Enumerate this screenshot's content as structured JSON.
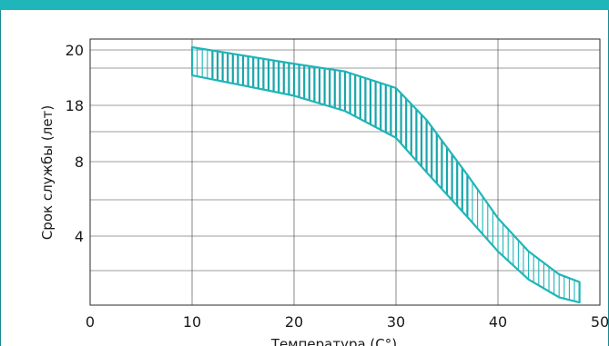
{
  "colors": {
    "accent": "#1fb5b9",
    "band_line": "#1fb5b9",
    "band_fill": "#1aa6ab",
    "grid": "#3a3a3a",
    "frame": "#1a8a93"
  },
  "chart_data": {
    "type": "area",
    "xlabel": "Температура (C°)",
    "ylabel": "Срок службы (лет)",
    "x_ticks": [
      "0",
      "10",
      "20",
      "30",
      "40",
      "50"
    ],
    "x_tick_values": [
      0,
      10,
      20,
      30,
      40,
      50
    ],
    "y_ticks": [
      "20",
      "18",
      "8",
      "4"
    ],
    "xlim": [
      0,
      50
    ],
    "grid": true,
    "upper_boundary": [
      {
        "x": 10,
        "y": 20
      },
      {
        "x": 20,
        "y": 18.7
      },
      {
        "x": 25,
        "y": 18.1
      },
      {
        "x": 30,
        "y": 16.8
      },
      {
        "x": 33,
        "y": 14.3
      },
      {
        "x": 37,
        "y": 10.0
      },
      {
        "x": 40,
        "y": 6.6
      },
      {
        "x": 43,
        "y": 4.0
      },
      {
        "x": 46,
        "y": 2.2
      },
      {
        "x": 48,
        "y": 1.6
      }
    ],
    "lower_boundary": [
      {
        "x": 10,
        "y": 17.8
      },
      {
        "x": 20,
        "y": 16.2
      },
      {
        "x": 25,
        "y": 15.0
      },
      {
        "x": 30,
        "y": 12.9
      },
      {
        "x": 33,
        "y": 10.2
      },
      {
        "x": 37,
        "y": 6.7
      },
      {
        "x": 40,
        "y": 4.0
      },
      {
        "x": 43,
        "y": 1.8
      },
      {
        "x": 46,
        "y": 0.4
      },
      {
        "x": 48,
        "y": 0.0
      }
    ]
  }
}
